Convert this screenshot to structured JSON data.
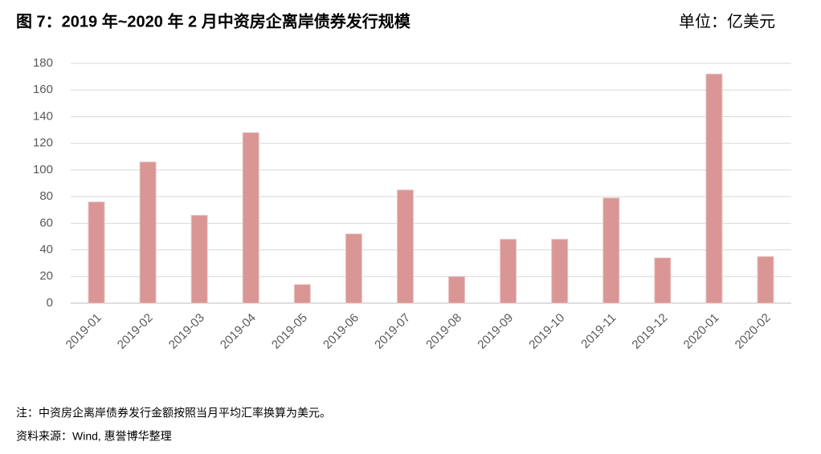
{
  "chart_data": {
    "type": "bar",
    "title": "图 7：2019 年~2020 年 2 月中资房企离岸债券发行规模",
    "unit": "单位：亿美元",
    "categories": [
      "2019-01",
      "2019-02",
      "2019-03",
      "2019-04",
      "2019-05",
      "2019-06",
      "2019-07",
      "2019-08",
      "2019-09",
      "2019-10",
      "2019-11",
      "2019-12",
      "2020-01",
      "2020-02"
    ],
    "values": [
      76,
      106,
      66,
      128,
      14,
      52,
      85,
      20,
      48,
      48,
      79,
      34,
      172,
      35
    ],
    "color": "#d99694",
    "ylim": [
      0,
      180
    ],
    "yticks": [
      0,
      20,
      40,
      60,
      80,
      100,
      120,
      140,
      160,
      180
    ],
    "grid": true,
    "note": "注：中资房企离岸债券发行金额按照当月平均汇率换算为美元。",
    "source": "资料来源：Wind, 惠誉博华整理"
  }
}
